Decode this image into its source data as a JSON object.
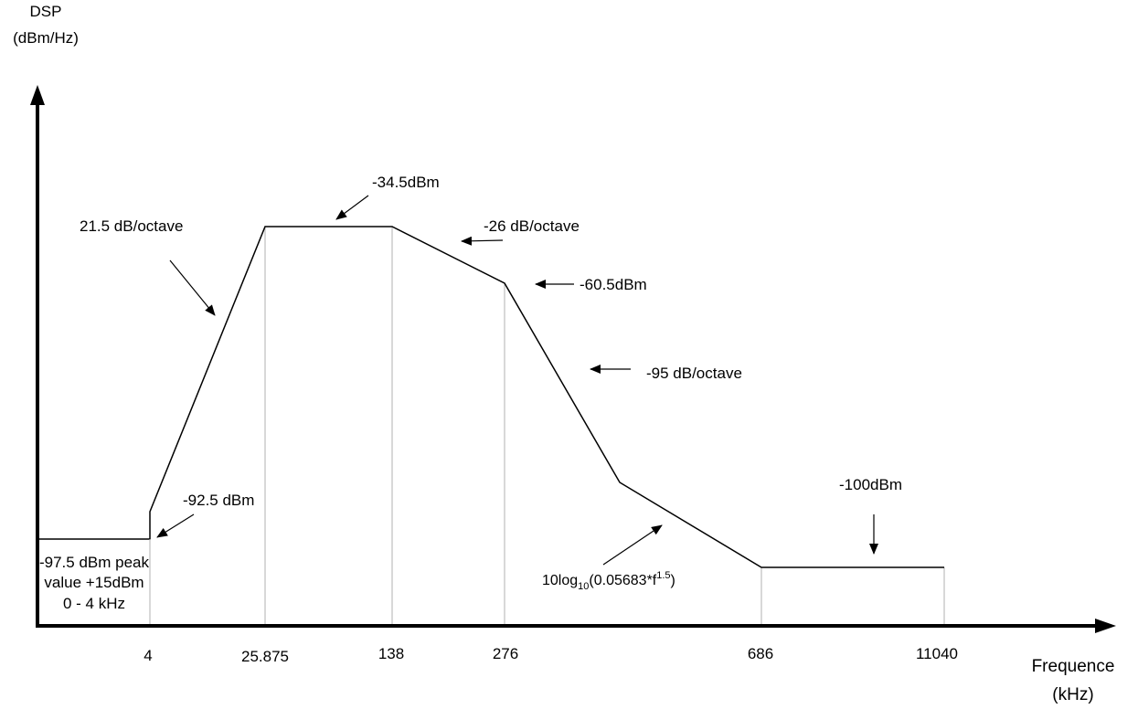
{
  "y_axis": {
    "title_line1": "DSP",
    "title_line2": "(dBm/Hz)"
  },
  "x_axis": {
    "title_line1": "Frequence",
    "title_line2": "(kHz)",
    "ticks": [
      "4",
      "25.875",
      "138",
      "276",
      "686",
      "11040"
    ]
  },
  "annotations": {
    "slope_up": "21.5 dB/octave",
    "top_level": "-34.5dBm",
    "slope_26": "-26 dB/octave",
    "level_605": "-60.5dBm",
    "slope_95": "-95 dB/octave",
    "level_925": "-92.5 dBm",
    "level_100": "-100dBm",
    "low_band_line1": "-97.5 dBm peak",
    "low_band_line2": "value +15dBm",
    "low_band_line3": "0 - 4 kHz",
    "formula_prefix": "10log",
    "formula_sub": "10",
    "formula_body": "(0.05683*f",
    "formula_sup": "1.5",
    "formula_suffix": ")"
  },
  "colors": {
    "line": "#000000",
    "guide": "#b0b0b0"
  }
}
